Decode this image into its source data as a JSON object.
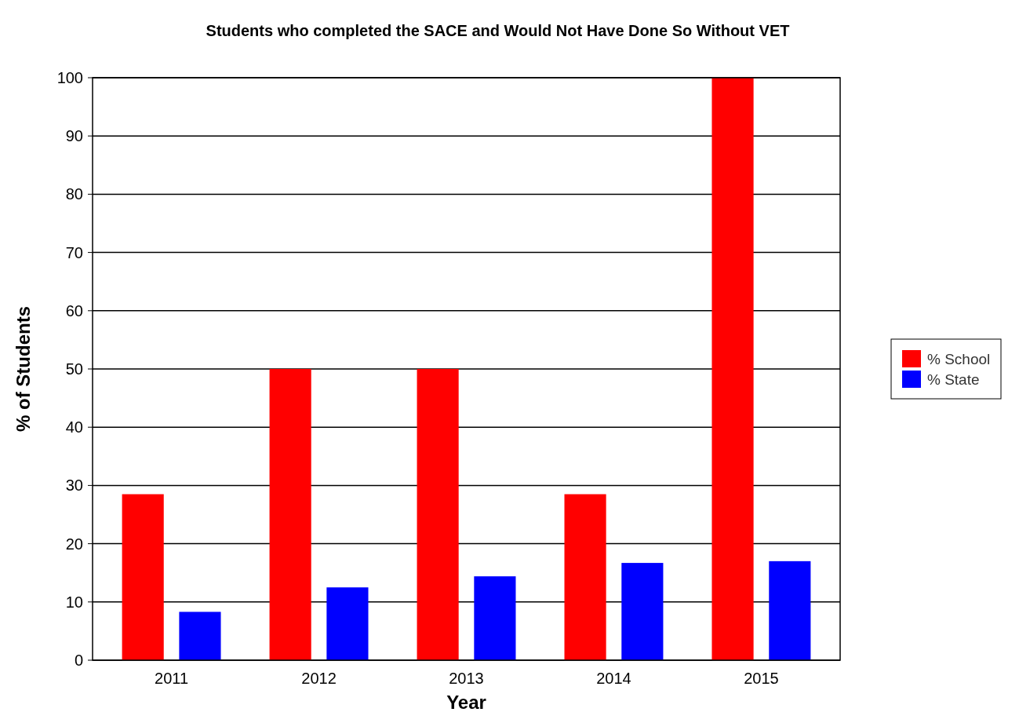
{
  "chart_data": {
    "type": "bar",
    "title": "Students who completed the SACE and Would Not Have Done So Without VET",
    "xlabel": "Year",
    "ylabel": "% of Students",
    "categories": [
      "2011",
      "2012",
      "2013",
      "2014",
      "2015"
    ],
    "series": [
      {
        "name": "% School",
        "color": "#ff0000",
        "values": [
          28.5,
          50,
          50,
          28.5,
          100
        ]
      },
      {
        "name": "% State",
        "color": "#0000ff",
        "values": [
          8.3,
          12.5,
          14.4,
          16.7,
          17.0
        ]
      }
    ],
    "ylim": [
      0,
      100
    ],
    "yticks": [
      0,
      10,
      20,
      30,
      40,
      50,
      60,
      70,
      80,
      90,
      100
    ],
    "grid": "y",
    "legend": "right"
  }
}
